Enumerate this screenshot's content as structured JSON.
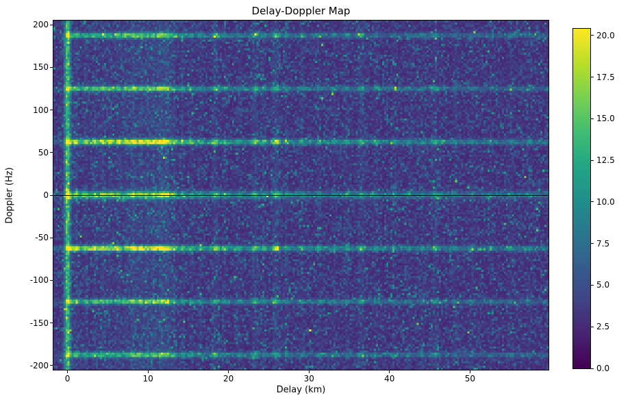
{
  "figure": {
    "title": "Delay-Doppler Map",
    "xlabel": "Delay (km)",
    "ylabel": "Doppler (Hz)"
  },
  "chart_data": {
    "type": "heatmap",
    "title": "Delay-Doppler Map",
    "xlabel": "Delay (km)",
    "ylabel": "Doppler (Hz)",
    "colormap": "viridis",
    "x_range": [
      -1.75,
      59.75
    ],
    "y_range": [
      -205,
      205
    ],
    "xticks": [
      0,
      10,
      20,
      30,
      40,
      50
    ],
    "yticks": [
      200,
      150,
      100,
      50,
      0,
      -50,
      -100,
      -150,
      -200
    ],
    "colorbar": {
      "min": 0,
      "max": 20.4,
      "ticks": [
        20.0,
        17.5,
        15.0,
        12.5,
        10.0,
        7.5,
        5.0,
        2.5,
        0.0
      ]
    },
    "grid": {
      "cols": 244,
      "rows": 164,
      "seed": 42
    },
    "background_noise": {
      "base": 2.2,
      "scale": 1.55
    },
    "features": {
      "zero_delay_line": {
        "delay": 0,
        "width_km": 0.38,
        "intensity": 11.5
      },
      "doppler_lines": [
        {
          "doppler": 0,
          "intensity": 9.5,
          "width_hz": 4.5
        },
        {
          "doppler": 62.5,
          "intensity": 12.0,
          "width_hz": 3.2
        },
        {
          "doppler": -62.5,
          "intensity": 12.0,
          "width_hz": 3.2
        },
        {
          "doppler": 125,
          "intensity": 9.0,
          "width_hz": 3.0
        },
        {
          "doppler": -125,
          "intensity": 9.0,
          "width_hz": 3.0
        },
        {
          "doppler": 187.5,
          "intensity": 8.0,
          "width_hz": 3.0
        },
        {
          "doppler": -187.5,
          "intensity": 8.0,
          "width_hz": 3.0
        }
      ],
      "zero_doppler_marker": {
        "doppler": 0,
        "color": "#000000"
      },
      "delay_decay_km": 20,
      "delay_striations": [
        [
          1.1,
          0.55,
          0.35
        ],
        [
          2.3,
          0.4,
          0.3
        ],
        [
          3.4,
          0.5,
          0.35
        ],
        [
          4.4,
          0.55,
          0.4
        ],
        [
          5.3,
          0.5,
          0.35
        ],
        [
          6.3,
          0.6,
          0.4
        ],
        [
          7.3,
          0.5,
          0.35
        ],
        [
          8.2,
          0.85,
          0.45
        ],
        [
          9.1,
          0.7,
          0.4
        ],
        [
          9.9,
          0.65,
          0.35
        ],
        [
          10.7,
          0.75,
          0.4
        ],
        [
          11.6,
          1.0,
          0.45
        ],
        [
          12.4,
          0.85,
          0.4
        ],
        [
          13.2,
          0.5,
          0.35
        ],
        [
          14.3,
          0.4,
          0.3
        ],
        [
          15.4,
          0.3,
          0.3
        ],
        [
          16.5,
          0.3,
          0.3
        ],
        [
          18.4,
          0.6,
          0.4
        ],
        [
          19.5,
          0.3,
          0.3
        ],
        [
          21.3,
          0.3,
          0.3
        ],
        [
          23.3,
          0.55,
          0.4
        ],
        [
          24.4,
          0.35,
          0.3
        ],
        [
          25.9,
          0.7,
          0.45
        ],
        [
          27.2,
          0.3,
          0.3
        ],
        [
          29.1,
          0.25,
          0.3
        ],
        [
          31.3,
          0.3,
          0.3
        ],
        [
          33.1,
          0.25,
          0.3
        ],
        [
          34.7,
          0.3,
          0.3
        ],
        [
          36.5,
          0.5,
          0.4
        ],
        [
          38.3,
          0.3,
          0.3
        ],
        [
          40.6,
          0.25,
          0.3
        ],
        [
          42.4,
          0.25,
          0.3
        ],
        [
          44.1,
          0.3,
          0.3
        ],
        [
          45.7,
          0.5,
          0.4
        ],
        [
          48.1,
          0.25,
          0.3
        ],
        [
          50.3,
          0.2,
          0.3
        ],
        [
          52.6,
          0.2,
          0.3
        ],
        [
          55.1,
          0.25,
          0.3
        ],
        [
          57.4,
          0.2,
          0.3
        ]
      ]
    },
    "viridis_stops": [
      [
        68,
        1,
        84
      ],
      [
        72,
        35,
        116
      ],
      [
        64,
        67,
        135
      ],
      [
        52,
        94,
        141
      ],
      [
        41,
        120,
        142
      ],
      [
        32,
        144,
        140
      ],
      [
        34,
        167,
        132
      ],
      [
        66,
        190,
        113
      ],
      [
        121,
        209,
        81
      ],
      [
        186,
        222,
        39
      ],
      [
        253,
        231,
        36
      ]
    ]
  }
}
